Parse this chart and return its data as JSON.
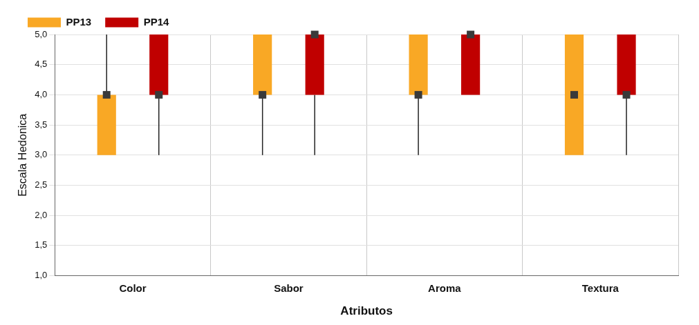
{
  "chart_data": {
    "type": "box",
    "xlabel": "Atributos",
    "ylabel": "Escala Hedonica",
    "categories": [
      "Color",
      "Sabor",
      "Aroma",
      "Textura"
    ],
    "ylim": [
      1,
      5
    ],
    "yticks": [
      {
        "value": 1,
        "label": "1,0"
      },
      {
        "value": 1.5,
        "label": "1,5"
      },
      {
        "value": 2,
        "label": "2,0"
      },
      {
        "value": 2.5,
        "label": "2,5"
      },
      {
        "value": 3,
        "label": "3,0"
      },
      {
        "value": 3.5,
        "label": "3,5"
      },
      {
        "value": 4,
        "label": "4,0"
      },
      {
        "value": 4.5,
        "label": "4,5"
      },
      {
        "value": 5,
        "label": "5,0"
      }
    ],
    "grid": true,
    "legend": "top",
    "marker": "square",
    "series": [
      {
        "name": "PP13",
        "color": "#f9a825",
        "boxes": [
          {
            "low": 3,
            "q1": 3,
            "median": 4,
            "q3": 4,
            "high": 5
          },
          {
            "low": 3,
            "q1": 4,
            "median": 4,
            "q3": 5,
            "high": 5
          },
          {
            "low": 3,
            "q1": 4,
            "median": 4,
            "q3": 5,
            "high": 5
          },
          {
            "low": 3,
            "q1": 3,
            "median": 4,
            "q3": 5,
            "high": 5
          }
        ]
      },
      {
        "name": "PP14",
        "color": "#c00000",
        "boxes": [
          {
            "low": 3,
            "q1": 4,
            "median": 4,
            "q3": 5,
            "high": 5
          },
          {
            "low": 3,
            "q1": 4,
            "median": 5,
            "q3": 5,
            "high": 5
          },
          {
            "low": 4,
            "q1": 4,
            "median": 5,
            "q3": 5,
            "high": 5
          },
          {
            "low": 3,
            "q1": 4,
            "median": 4,
            "q3": 5,
            "high": 5
          }
        ]
      }
    ]
  }
}
